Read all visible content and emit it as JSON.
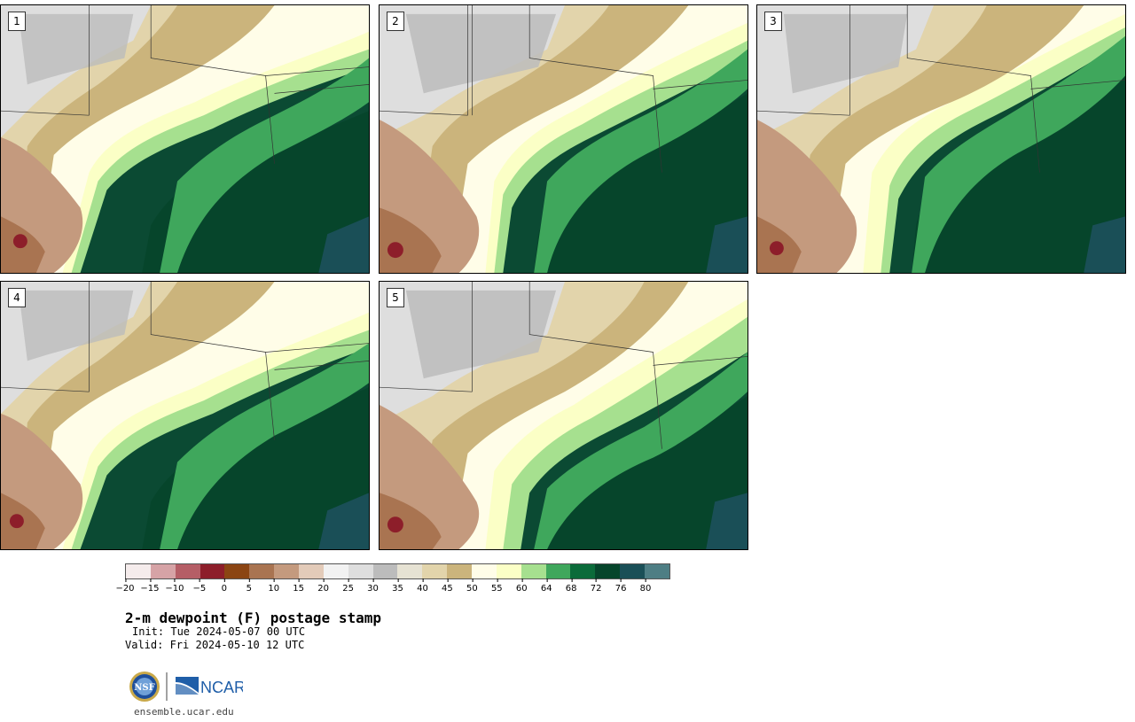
{
  "panels": [
    {
      "label": "1"
    },
    {
      "label": "2"
    },
    {
      "label": "3"
    },
    {
      "label": "4"
    },
    {
      "label": "5"
    }
  ],
  "colorbar": {
    "ticks": [
      "−20",
      "−15",
      "−10",
      "−5",
      "0",
      "5",
      "10",
      "15",
      "20",
      "25",
      "30",
      "35",
      "40",
      "45",
      "50",
      "55",
      "60",
      "64",
      "68",
      "72",
      "76",
      "80"
    ],
    "colors": [
      "#f5ecec",
      "#d6a3a6",
      "#b55e66",
      "#8d1e2a",
      "#8b4513",
      "#a97451",
      "#c49a7e",
      "#e3cbb9",
      "#f2f2f2",
      "#dedede",
      "#bcbcbc",
      "#e6e2d3",
      "#e2d4ab",
      "#cbb47c",
      "#fffde8",
      "#fbffc6",
      "#a6e08f",
      "#3fa75c",
      "#0b6b3a",
      "#06452b",
      "#1a4f57",
      "#4e7e84"
    ]
  },
  "title": "2-m dewpoint (F) postage stamp",
  "init": "Init: Tue 2024-05-07 00 UTC",
  "valid": "Valid: Fri 2024-05-10 12 UTC",
  "footer": {
    "nsf_text": "NSF",
    "ncar_text": "NCAR",
    "url": "ensemble.ucar.edu"
  }
}
